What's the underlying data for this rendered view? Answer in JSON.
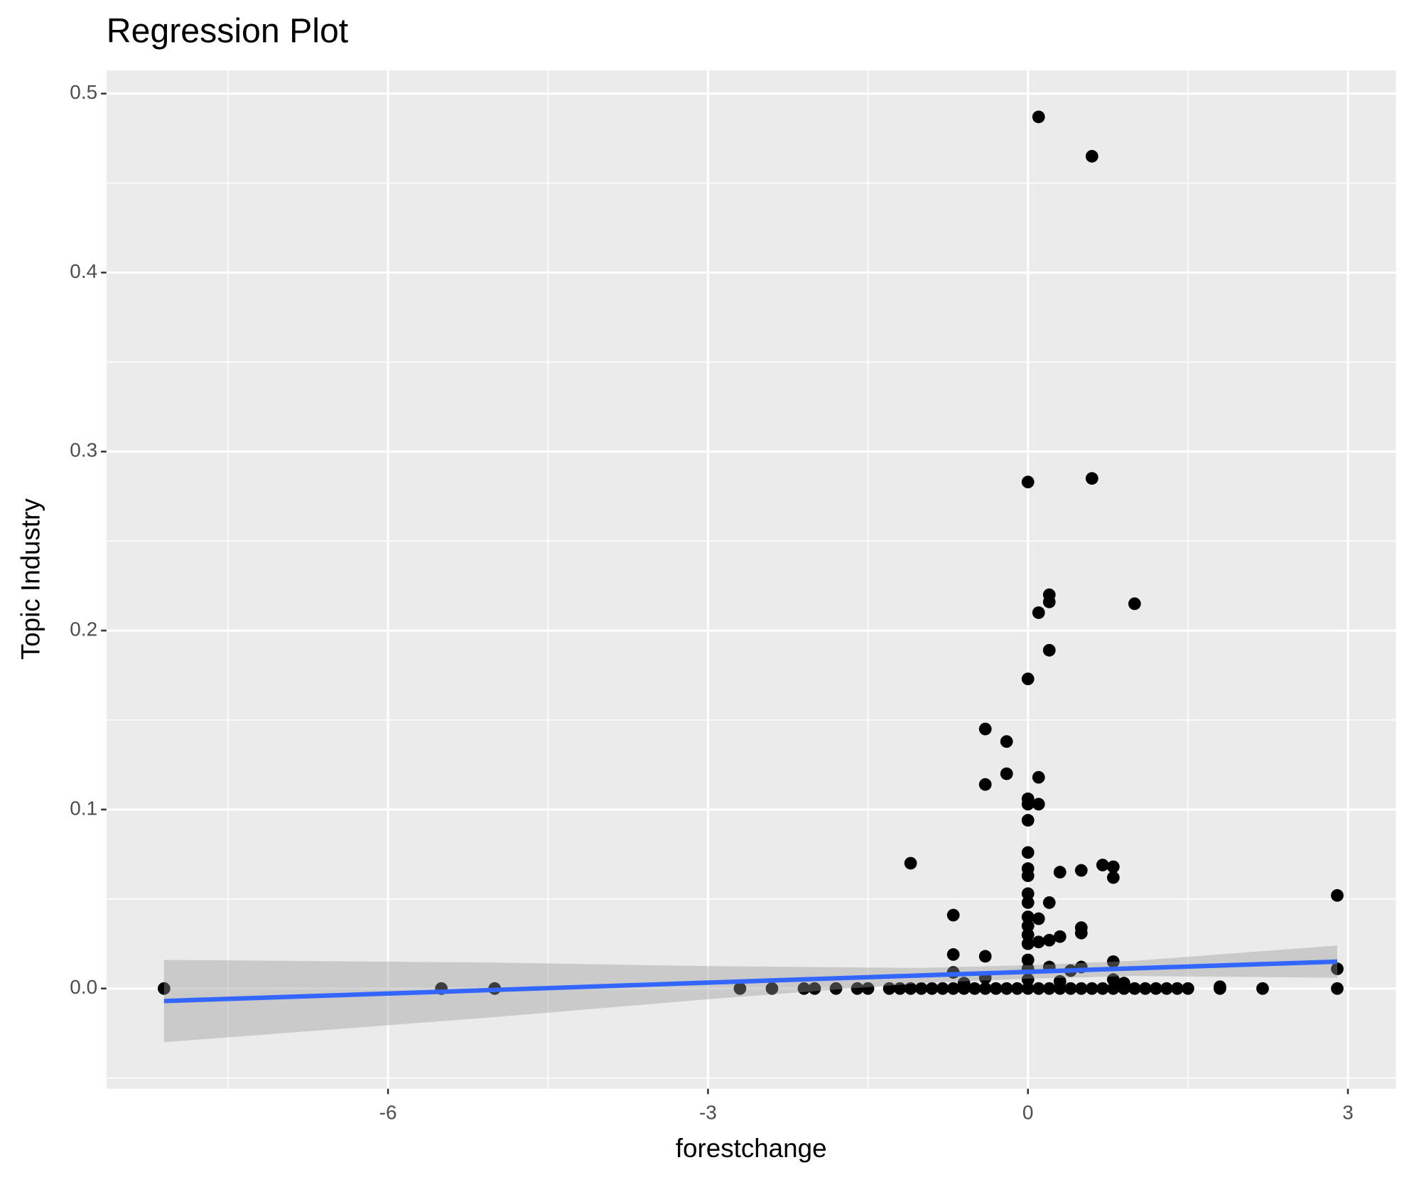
{
  "chart_data": {
    "type": "scatter",
    "title": "Regression Plot",
    "x_label": "forestchange",
    "y_label": "Topic Industry",
    "xlim": [
      -8.64,
      3.45
    ],
    "ylim": [
      -0.056,
      0.513
    ],
    "xticks": [
      -6,
      -3,
      0,
      3
    ],
    "yticks": [
      {
        "value": 0,
        "label": "0.0"
      },
      0.1,
      0.2,
      0.3,
      0.4,
      0.5
    ],
    "x_minor_ticks": [
      -7.5,
      -4.5,
      -1.5,
      1.5
    ],
    "y_minor_ticks": [
      -0.05,
      0.05,
      0.15,
      0.25,
      0.35,
      0.45
    ],
    "grid": true,
    "point_color": "#000000",
    "line_color": "#3366ff",
    "ribbon_color": "#999999",
    "x": [
      -8.1,
      -5.5,
      -5,
      -2.7,
      -2.4,
      -2.1,
      -2.0,
      -1.8,
      -1.6,
      -1.5,
      -1.3,
      -1.2,
      -1.1,
      -1.1,
      -1.0,
      -0.9,
      -0.8,
      -0.7,
      -0.7,
      -0.7,
      -0.7,
      -0.6,
      -0.6,
      -0.5,
      -0.4,
      -0.4,
      -0.4,
      -0.4,
      -0.4,
      -0.3,
      -0.2,
      -0.2,
      -0.2,
      -0.1,
      0,
      0,
      0,
      0,
      0,
      0,
      0,
      0,
      0,
      0,
      0,
      0,
      0,
      0,
      0,
      0,
      0,
      0,
      0.1,
      0.1,
      0.1,
      0.1,
      0.1,
      0.1,
      0.1,
      0.2,
      0.2,
      0.2,
      0.2,
      0.2,
      0.2,
      0.2,
      0.3,
      0.3,
      0.3,
      0.3,
      0.4,
      0.4,
      0.5,
      0.5,
      0.5,
      0.5,
      0.5,
      0.6,
      0.6,
      0.6,
      0.7,
      0.7,
      0.8,
      0.8,
      0.8,
      0.8,
      0.8,
      0.9,
      0.9,
      1.0,
      1.0,
      1.1,
      1.2,
      1.3,
      1.4,
      1.5,
      1.8,
      1.8,
      2.2,
      2.9,
      2.9,
      2.9
    ],
    "y": [
      0,
      0,
      0,
      0,
      0,
      0,
      0,
      0,
      0,
      0,
      0,
      0,
      0,
      0.07,
      0,
      0,
      0,
      0,
      0.041,
      0.019,
      0.009,
      0,
      0.003,
      0,
      0,
      0.145,
      0.114,
      0.018,
      0.006,
      0,
      0,
      0.138,
      0.12,
      0,
      0.283,
      0.173,
      0.106,
      0.103,
      0.094,
      0.076,
      0.067,
      0.063,
      0.053,
      0.048,
      0.04,
      0.035,
      0.03,
      0.025,
      0.016,
      0.011,
      0.005,
      0,
      0.487,
      0.21,
      0.118,
      0.103,
      0.039,
      0.026,
      0,
      0.22,
      0.216,
      0.189,
      0.048,
      0.027,
      0.012,
      0,
      0.065,
      0.029,
      0.004,
      0,
      0,
      0.01,
      0.066,
      0.034,
      0.031,
      0.012,
      0,
      0.465,
      0.285,
      0,
      0.069,
      0,
      0.068,
      0.062,
      0.015,
      0.005,
      0,
      0.003,
      0,
      0.215,
      0,
      0,
      0,
      0,
      0,
      0,
      0.001,
      0,
      0,
      0.052,
      0.011,
      0
    ],
    "fit": {
      "x": [
        -8.1,
        -5,
        -3,
        -1,
        0,
        1,
        2.9
      ],
      "y": [
        -0.007,
        -0.0008,
        0.0033,
        0.0073,
        0.0093,
        0.0113,
        0.015
      ],
      "lower": [
        -0.03,
        -0.016,
        -0.006,
        0.003,
        0.0055,
        0.007,
        0.006
      ],
      "upper": [
        0.016,
        0.0145,
        0.0125,
        0.0115,
        0.013,
        0.0155,
        0.024
      ]
    }
  }
}
